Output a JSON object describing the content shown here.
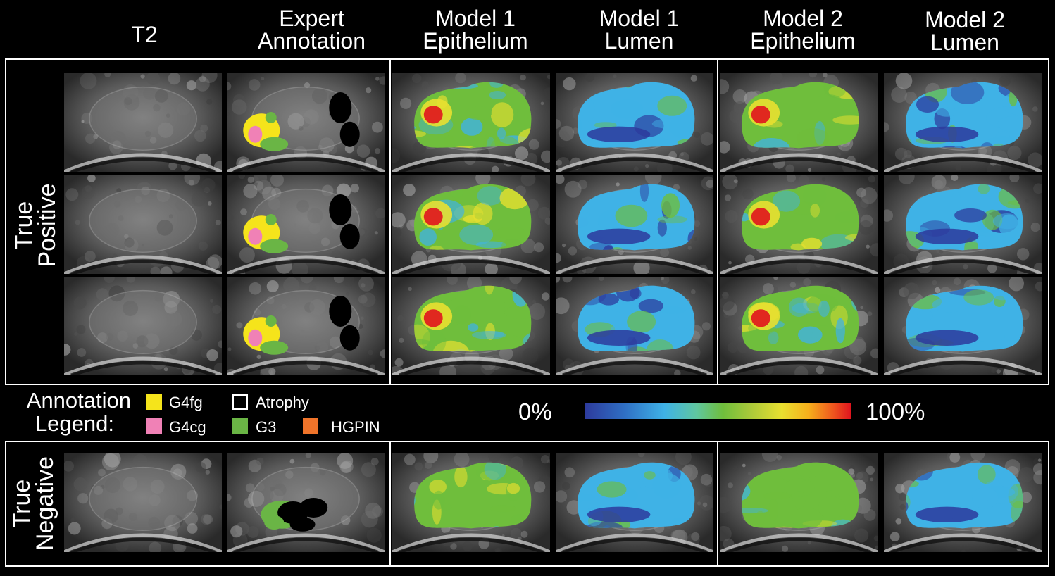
{
  "columns": [
    {
      "line1": "T2",
      "line2": ""
    },
    {
      "line1": "Expert",
      "line2": "Annotation"
    },
    {
      "line1": "Model 1",
      "line2": "Epithelium"
    },
    {
      "line1": "Model 1",
      "line2": "Lumen"
    },
    {
      "line1": "Model 2",
      "line2": "Epithelium"
    },
    {
      "line1": "Model 2",
      "line2": "Lumen"
    }
  ],
  "row_labels": {
    "true_positive": {
      "line1": "True",
      "line2": "Positive"
    },
    "true_negative": {
      "line1": "True",
      "line2": "Negative"
    }
  },
  "legend": {
    "title_line1": "Annotation",
    "title_line2": "Legend:",
    "items": [
      {
        "label": "G4fg",
        "color": "#f5e41b"
      },
      {
        "label": "Atrophy",
        "color": "#000000"
      },
      {
        "label": "G4cg",
        "color": "#f081b6"
      },
      {
        "label": "G3",
        "color": "#6ab545"
      },
      {
        "label": "HGPIN",
        "color": "#f0742a"
      }
    ]
  },
  "colorbar": {
    "min_label": "0%",
    "max_label": "100%",
    "colors": [
      "#2d3a9c",
      "#3fb2e6",
      "#6fbe3c",
      "#e8e030",
      "#e0141e"
    ]
  }
}
